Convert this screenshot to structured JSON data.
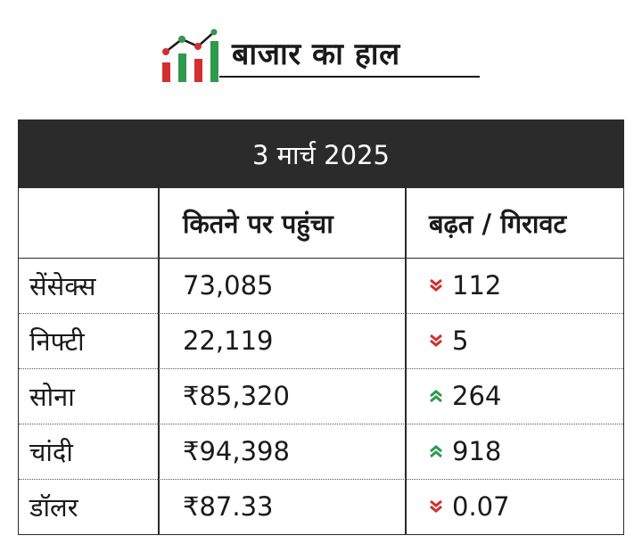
{
  "header": {
    "title": "बाजार का हाल",
    "logo_icon": "rising-bar-chart-icon"
  },
  "table": {
    "date": "3 मार्च 2025",
    "columns": [
      "",
      "कितने पर पहुंचा",
      "बढ़त / गिरावट"
    ],
    "rows": [
      {
        "name": "सेंसेक्स",
        "value": "73,085",
        "direction": "down",
        "change": "112"
      },
      {
        "name": "निफ्टी",
        "value": "22,119",
        "direction": "down",
        "change": "5"
      },
      {
        "name": "सोना",
        "value": "₹85,320",
        "direction": "up",
        "change": "264"
      },
      {
        "name": "चांदी",
        "value": "₹94,398",
        "direction": "up",
        "change": "918"
      },
      {
        "name": "डॉलर",
        "value": "₹87.33",
        "direction": "down",
        "change": "0.07"
      }
    ]
  },
  "colors": {
    "up": "#2e9a4a",
    "down": "#d32f2f",
    "header_bg": "#2b2b2b"
  }
}
